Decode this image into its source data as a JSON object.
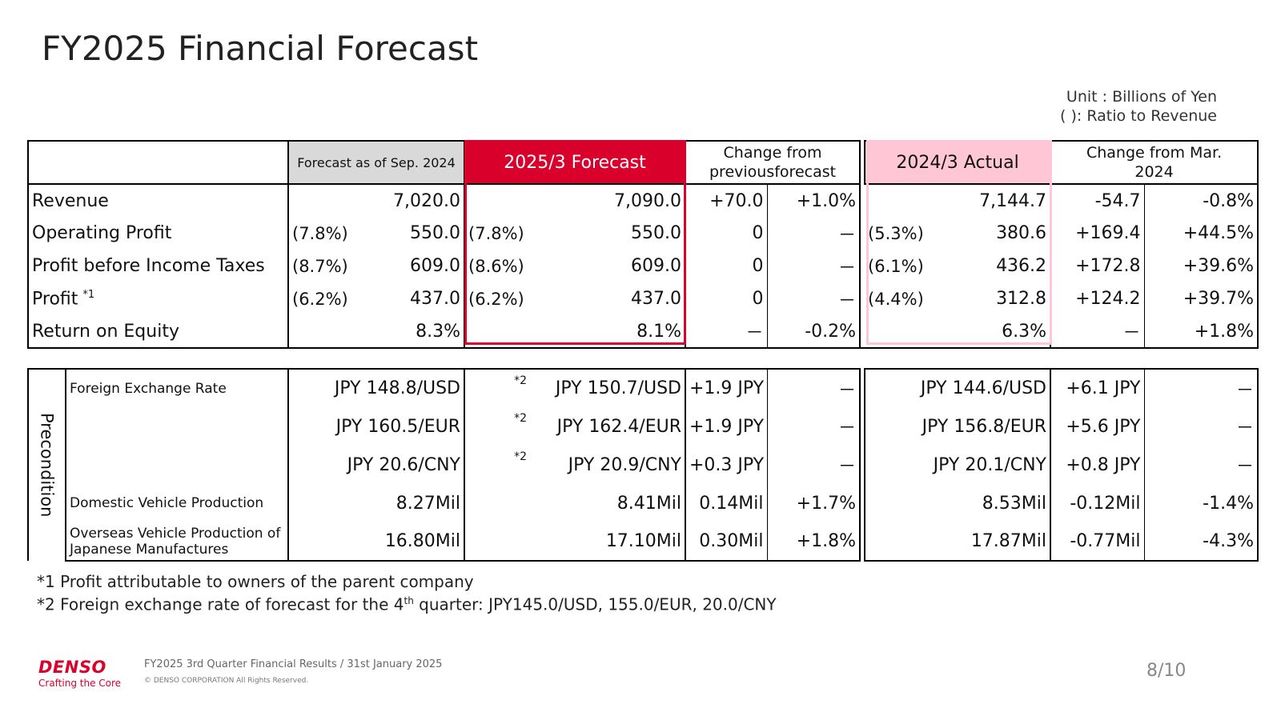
{
  "title": "FY2025 Financial Forecast",
  "unit_line1": "Unit : Billions of Yen",
  "unit_line2": "( ): Ratio to Revenue",
  "headers": {
    "sep": "Forecast as of Sep. 2024",
    "forecast": "2025/3 Forecast",
    "chg_prev_1": "Change from",
    "chg_prev_2": "previousforecast",
    "actual": "2024/3 Actual",
    "chg_mar_1": "Change from Mar.",
    "chg_mar_2": "2024"
  },
  "rows": [
    {
      "label": "Revenue",
      "sup": "",
      "sep_ratio": "",
      "sep_val": "7,020.0",
      "fc_ratio": "",
      "fc_val": "7,090.0",
      "chg": "+70.0",
      "chg_pct": "+1.0%",
      "act_ratio": "",
      "act_val": "7,144.7",
      "mchg": "-54.7",
      "mchg_pct": "-0.8%"
    },
    {
      "label": "Operating Profit",
      "sup": "",
      "sep_ratio": "(7.8%)",
      "sep_val": "550.0",
      "fc_ratio": "(7.8%)",
      "fc_val": "550.0",
      "chg": "0",
      "chg_pct": "－",
      "act_ratio": "(5.3%)",
      "act_val": "380.6",
      "mchg": "+169.4",
      "mchg_pct": "+44.5%"
    },
    {
      "label": "Profit before Income Taxes",
      "sup": "",
      "sep_ratio": "(8.7%)",
      "sep_val": "609.0",
      "fc_ratio": "(8.6%)",
      "fc_val": "609.0",
      "chg": "0",
      "chg_pct": "－",
      "act_ratio": "(6.1%)",
      "act_val": "436.2",
      "mchg": "+172.8",
      "mchg_pct": "+39.6%"
    },
    {
      "label": "Profit",
      "sup": "*1",
      "sep_ratio": "(6.2%)",
      "sep_val": "437.0",
      "fc_ratio": "(6.2%)",
      "fc_val": "437.0",
      "chg": "0",
      "chg_pct": "－",
      "act_ratio": "(4.4%)",
      "act_val": "312.8",
      "mchg": "+124.2",
      "mchg_pct": "+39.7%"
    },
    {
      "label": "Return on Equity",
      "sup": "",
      "sep_ratio": "",
      "sep_val": "8.3%",
      "fc_ratio": "",
      "fc_val": "8.1%",
      "chg": "－",
      "chg_pct": "-0.2%",
      "act_ratio": "",
      "act_val": "6.3%",
      "mchg": "－",
      "mchg_pct": "+1.8%"
    }
  ],
  "precondition": {
    "side_label": "Precondition",
    "rows": [
      {
        "label": "Foreign Exchange Rate",
        "sep": "JPY 148.8/USD",
        "note": "*2",
        "fc": "JPY 150.7/USD",
        "chg": "+1.9 JPY",
        "chg_pct": "－",
        "act": "JPY 144.6/USD",
        "mchg": "+6.1 JPY",
        "mchg_pct": "－"
      },
      {
        "label": "",
        "sep": "JPY 160.5/EUR",
        "note": "*2",
        "fc": "JPY 162.4/EUR",
        "chg": "+1.9 JPY",
        "chg_pct": "－",
        "act": "JPY 156.8/EUR",
        "mchg": "+5.6 JPY",
        "mchg_pct": "－"
      },
      {
        "label": "",
        "sep": "JPY 20.6/CNY",
        "note": "*2",
        "fc": "JPY 20.9/CNY",
        "chg": "+0.3 JPY",
        "chg_pct": "－",
        "act": "JPY 20.1/CNY",
        "mchg": "+0.8 JPY",
        "mchg_pct": "－"
      },
      {
        "label": "Domestic Vehicle Production",
        "sep": "8.27Mil",
        "note": "",
        "fc": "8.41Mil",
        "chg": "0.14Mil",
        "chg_pct": "+1.7%",
        "act": "8.53Mil",
        "mchg": "-0.12Mil",
        "mchg_pct": "-1.4%"
      },
      {
        "label": "Overseas Vehicle Production of Japanese Manufactures",
        "sep": "16.80Mil",
        "note": "",
        "fc": "17.10Mil",
        "chg": "0.30Mil",
        "chg_pct": "+1.8%",
        "act": "17.87Mil",
        "mchg": "-0.77Mil",
        "mchg_pct": "-4.3%"
      }
    ]
  },
  "notes": {
    "n1": "*1 Profit attributable to owners of the parent company",
    "n2_pre": "*2 Foreign exchange rate of forecast for the 4",
    "n2_sup": "th",
    "n2_post": " quarter: JPY145.0/USD, 155.0/EUR, 20.0/CNY"
  },
  "footer": {
    "brand": "DENSO",
    "tagline": "Crafting the Core",
    "doc": "FY2025 3rd Quarter Financial Results / 31st January 2025",
    "copyright": "© DENSO CORPORATION All Rights Reserved.",
    "page": "8/10"
  },
  "colors": {
    "accent_red": "#d9002c",
    "pink": "#ffc7d6",
    "gray": "#d9d9d9"
  }
}
